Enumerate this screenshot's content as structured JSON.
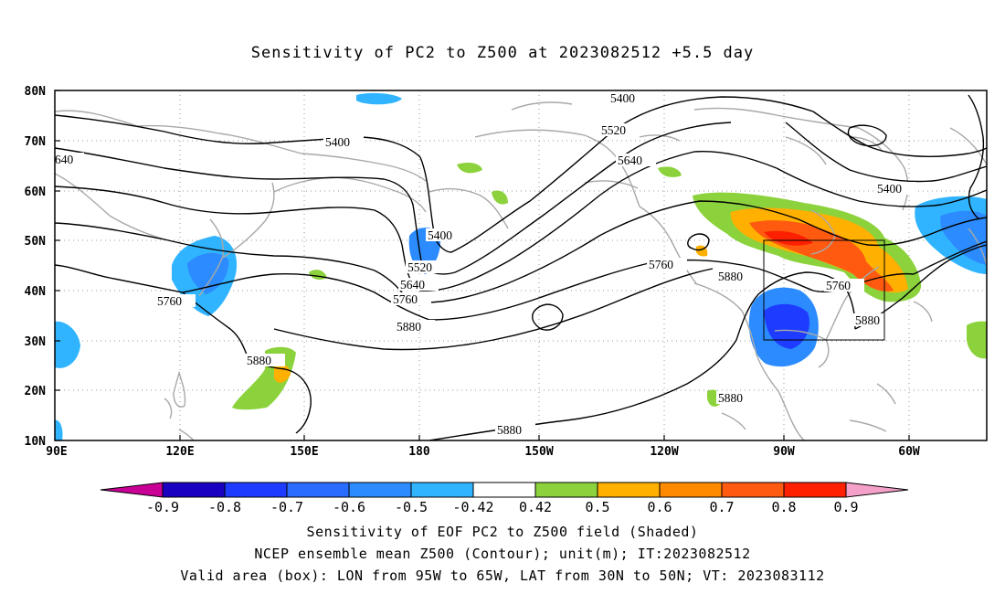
{
  "title": "Sensitivity of PC2 to Z500 at 2023082512 +5.5 day",
  "axes": {
    "lat_labels": [
      "80N",
      "70N",
      "60N",
      "50N",
      "40N",
      "30N",
      "20N",
      "10N"
    ],
    "lon_labels": [
      "90E",
      "120E",
      "150E",
      "180",
      "150W",
      "120W",
      "90W",
      "60W"
    ]
  },
  "contours": [
    {
      "value": "5400",
      "label": "5400"
    },
    {
      "value": "5520",
      "label": "5520"
    },
    {
      "value": "5640",
      "label": "5640"
    },
    {
      "value": "5760",
      "label": "5760"
    },
    {
      "value": "5880",
      "label": "5880"
    }
  ],
  "contour_label_texts": {
    "c1": "5400",
    "c2": "5400",
    "c3": "5400",
    "c4": "5400",
    "c5": "5520",
    "c6": "5520",
    "c7": "640",
    "c8": "5640",
    "c9": "5640",
    "c10": "5760",
    "c11": "5760",
    "c12": "5760",
    "c13": "5760",
    "c14": "5880",
    "c15": "5880",
    "c16": "5880",
    "c17": "5880",
    "c18": "5880",
    "c19": "5880"
  },
  "colorbar": {
    "labels": [
      "-0.9",
      "-0.8",
      "-0.7",
      "-0.6",
      "-0.5",
      "-0.42",
      "0.42",
      "0.5",
      "0.6",
      "0.7",
      "0.8",
      "0.9"
    ],
    "colors": [
      "#1a00c0",
      "#1e3cff",
      "#2a6cff",
      "#2c8cff",
      "#30b4ff",
      "#ffffff",
      "#8cd23c",
      "#ffb000",
      "#ff8a00",
      "#ff5a10",
      "#ff2000"
    ],
    "left_tail": "#c80096",
    "right_tail": "#f4a0c8"
  },
  "valid_box": {
    "lon_from": "95W",
    "lon_to": "65W",
    "lat_from": "30N",
    "lat_to": "50N"
  },
  "footer": {
    "line1": "Sensitivity of EOF PC2 to Z500 field (Shaded)",
    "line2": "NCEP ensemble mean Z500 (Contour); unit(m); IT:2023082512",
    "line3": "Valid area (box): LON from 95W to 65W, LAT from 30N to 50N; VT: 2023083112"
  }
}
